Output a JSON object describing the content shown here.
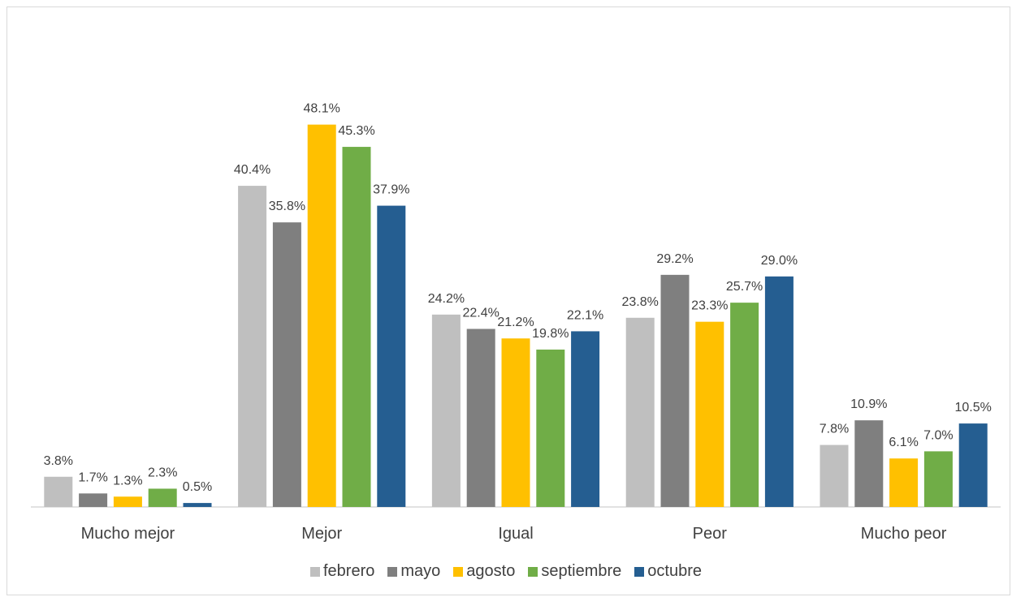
{
  "chart_data": {
    "type": "bar",
    "title": "",
    "categories": [
      "Mucho mejor",
      "Mejor",
      "Igual",
      "Peor",
      "Mucho peor"
    ],
    "series": [
      {
        "name": "febrero",
        "color": "#bfbfbf",
        "values": [
          3.8,
          40.4,
          24.2,
          23.8,
          7.8
        ],
        "labels": [
          "3.8%",
          "40.4%",
          "24.2%",
          "23.8%",
          "7.8%"
        ]
      },
      {
        "name": "mayo",
        "color": "#7f7f7f",
        "values": [
          1.7,
          35.8,
          22.4,
          29.2,
          10.9
        ],
        "labels": [
          "1.7%",
          "35.8%",
          "22.4%",
          "29.2%",
          "10.9%"
        ]
      },
      {
        "name": "agosto",
        "color": "#ffc000",
        "values": [
          1.3,
          48.1,
          21.2,
          23.3,
          6.1
        ],
        "labels": [
          "1.3%",
          "48.1%",
          "21.2%",
          "23.3%",
          "6.1%"
        ]
      },
      {
        "name": "septiembre",
        "color": "#70ad47",
        "values": [
          2.3,
          45.3,
          19.8,
          25.7,
          7.0
        ],
        "labels": [
          "2.3%",
          "45.3%",
          "19.8%",
          "25.7%",
          "7.0%"
        ]
      },
      {
        "name": "octubre",
        "color": "#255e91",
        "values": [
          0.5,
          37.9,
          22.1,
          29.0,
          10.5
        ],
        "labels": [
          "0.5%",
          "37.9%",
          "22.1%",
          "29.0%",
          "10.5%"
        ]
      }
    ],
    "ylim": [
      0,
      50
    ],
    "grid": false,
    "legend_position": "bottom"
  }
}
